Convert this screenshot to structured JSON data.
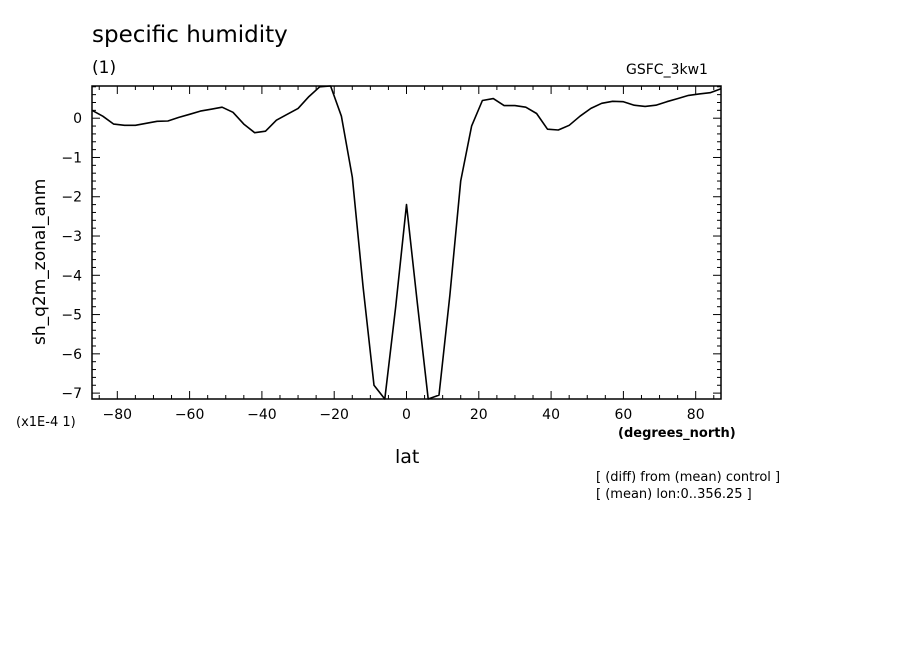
{
  "chart_data": {
    "type": "line",
    "title": "specific humidity",
    "subtitle": "(1)",
    "dataset_label": "GSFC_3kw1",
    "xlabel": "lat",
    "x_units": "(degrees_north)",
    "ylabel": "sh_q2m_zonal_anm",
    "y_multiplier": "(x1E-4 1)",
    "notes": [
      "[ (diff) from (mean) control ]",
      "[ (mean) lon:0..356.25 ]"
    ],
    "xlim": [
      -87,
      87
    ],
    "ylim": [
      -7.15,
      0.82
    ],
    "x_ticks": [
      -80,
      -60,
      -40,
      -20,
      0,
      20,
      40,
      60,
      80
    ],
    "x_tick_labels": [
      "−80",
      "−60",
      "−40",
      "−20",
      "0",
      "20",
      "40",
      "60",
      "80"
    ],
    "y_ticks": [
      0,
      -1,
      -2,
      -3,
      -4,
      -5,
      -6,
      -7
    ],
    "y_tick_labels": [
      "0",
      "−1",
      "−2",
      "−3",
      "−4",
      "−5",
      "−6",
      "−7"
    ],
    "grid": false,
    "series": [
      {
        "x": [
          -87,
          -84,
          -81,
          -78,
          -75,
          -72,
          -69,
          -66,
          -63,
          -60,
          -57,
          -54,
          -51,
          -48,
          -45,
          -42,
          -39,
          -36,
          -33,
          -30,
          -27,
          -24,
          -21,
          -18,
          -15,
          -12,
          -9,
          -6,
          -3,
          0,
          3,
          6,
          9,
          12,
          15,
          18,
          21,
          24,
          27,
          30,
          33,
          36,
          39,
          42,
          45,
          48,
          51,
          54,
          57,
          60,
          63,
          66,
          69,
          72,
          75,
          78,
          81,
          84,
          87
        ],
        "y": [
          0.2,
          0.05,
          -0.15,
          -0.18,
          -0.18,
          -0.13,
          -0.08,
          -0.07,
          0.02,
          0.1,
          0.18,
          0.23,
          0.28,
          0.15,
          -0.15,
          -0.37,
          -0.33,
          -0.05,
          0.1,
          0.25,
          0.55,
          0.8,
          0.82,
          0.05,
          -1.5,
          -4.3,
          -6.8,
          -7.15,
          -4.8,
          -2.2,
          -4.7,
          -7.15,
          -7.05,
          -4.5,
          -1.6,
          -0.2,
          0.45,
          0.5,
          0.32,
          0.32,
          0.28,
          0.12,
          -0.28,
          -0.3,
          -0.18,
          0.05,
          0.25,
          0.38,
          0.43,
          0.42,
          0.33,
          0.3,
          0.33,
          0.42,
          0.5,
          0.58,
          0.62,
          0.65,
          0.75
        ]
      }
    ]
  }
}
